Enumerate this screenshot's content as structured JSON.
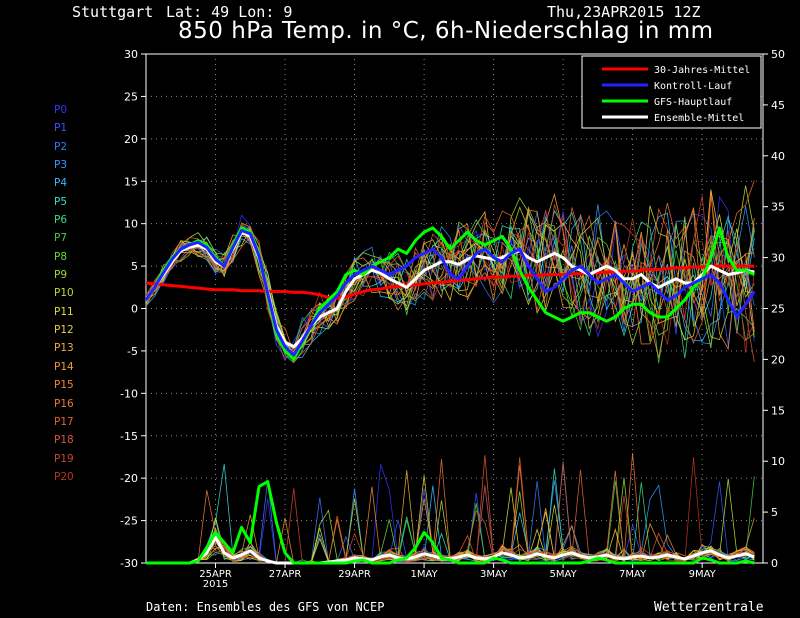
{
  "header": {
    "location": "Stuttgart",
    "coords": "Lat: 49 Lon: 9",
    "run": "Thu,23APR2015 12Z",
    "title": "850 hPa Temp. in °C, 6h-Niederschlag in mm"
  },
  "footer": {
    "source": "Daten: Ensembles des GFS von NCEP",
    "brand": "Wetterzentrale"
  },
  "members": [
    {
      "label": "P0",
      "color": "#3333ff"
    },
    {
      "label": "P1",
      "color": "#3355ff"
    },
    {
      "label": "P2",
      "color": "#3377ff"
    },
    {
      "label": "P3",
      "color": "#3399ff"
    },
    {
      "label": "P4",
      "color": "#33bbff"
    },
    {
      "label": "P5",
      "color": "#33ddcc"
    },
    {
      "label": "P6",
      "color": "#33dd88"
    },
    {
      "label": "P7",
      "color": "#44cc44"
    },
    {
      "label": "P8",
      "color": "#66dd33"
    },
    {
      "label": "P9",
      "color": "#99dd33"
    },
    {
      "label": "P10",
      "color": "#bbdd33"
    },
    {
      "label": "P11",
      "color": "#dddd33"
    },
    {
      "label": "P12",
      "color": "#eecc33"
    },
    {
      "label": "P13",
      "color": "#eeaa33"
    },
    {
      "label": "P14",
      "color": "#ee9933"
    },
    {
      "label": "P15",
      "color": "#ee8833"
    },
    {
      "label": "P16",
      "color": "#ee7733"
    },
    {
      "label": "P17",
      "color": "#dd6633"
    },
    {
      "label": "P18",
      "color": "#dd5533"
    },
    {
      "label": "P19",
      "color": "#cc4433"
    },
    {
      "label": "P20",
      "color": "#bb3322"
    }
  ],
  "chart_data": {
    "type": "line",
    "x_ticks": [
      "25APR\n2015",
      "27APR",
      "29APR",
      "1MAY",
      "3MAY",
      "5MAY",
      "7MAY",
      "9MAY"
    ],
    "x_tick_day": [
      2,
      4,
      6,
      8,
      10,
      12,
      14,
      16
    ],
    "xlim_days": [
      0,
      17.75
    ],
    "temp_axis": {
      "label": "°C",
      "ylim": [
        -30,
        30
      ],
      "ticks": [
        -30,
        -25,
        -20,
        -15,
        -10,
        -5,
        0,
        5,
        10,
        15,
        20,
        25,
        30
      ]
    },
    "precip_axis": {
      "label": "mm",
      "ylim": [
        0,
        50
      ],
      "ticks": [
        0,
        5,
        10,
        15,
        20,
        25,
        30,
        35,
        40,
        45,
        50
      ]
    },
    "legend": {
      "position": "top-right",
      "entries": [
        {
          "name": "30-Jahres-Mittel",
          "color": "#ff0000"
        },
        {
          "name": "Kontroll-Lauf",
          "color": "#2222ff"
        },
        {
          "name": "GFS-Hauptlauf",
          "color": "#00ff00"
        },
        {
          "name": "Ensemble-Mittel",
          "color": "#ffffff"
        }
      ]
    },
    "step_days": 0.25,
    "series": [
      {
        "name": "30-Jahres-Mittel",
        "axis": "temp",
        "color": "#ff0000",
        "width": 3,
        "values": [
          3.0,
          2.9,
          2.8,
          2.7,
          2.6,
          2.5,
          2.4,
          2.3,
          2.2,
          2.2,
          2.2,
          2.1,
          2.1,
          2.1,
          2.0,
          2.0,
          2.0,
          1.9,
          1.9,
          1.8,
          1.6,
          1.3,
          1.2,
          1.4,
          1.7,
          2.0,
          2.2,
          2.3,
          2.5,
          2.6,
          2.7,
          2.8,
          2.9,
          3.0,
          3.1,
          3.2,
          3.3,
          3.4,
          3.5,
          3.6,
          3.7,
          3.7,
          3.8,
          3.8,
          3.9,
          3.9,
          4.0,
          4.0,
          4.0,
          4.1,
          4.1,
          4.2,
          4.2,
          4.3,
          4.3,
          4.4,
          4.4,
          4.5,
          4.6,
          4.6,
          4.7,
          4.8,
          4.8,
          4.9,
          4.9,
          5.0,
          5.0,
          5.0,
          5.0,
          5.0,
          5.0
        ]
      },
      {
        "name": "Ensemble-Mittel",
        "axis": "temp",
        "color": "#ffffff",
        "width": 3,
        "values": [
          1.0,
          2.5,
          4.0,
          5.5,
          6.8,
          7.2,
          7.5,
          7.0,
          5.5,
          5.0,
          7.0,
          9.0,
          8.5,
          6.0,
          2.0,
          -2.0,
          -4.0,
          -4.5,
          -3.5,
          -2.0,
          -1.0,
          -0.5,
          0.0,
          2.0,
          3.5,
          4.0,
          4.5,
          4.2,
          3.5,
          3.0,
          2.5,
          3.5,
          4.5,
          5.0,
          5.5,
          5.5,
          5.2,
          5.8,
          6.2,
          6.0,
          5.8,
          6.0,
          6.5,
          6.8,
          6.0,
          5.5,
          6.0,
          6.5,
          6.0,
          5.0,
          4.5,
          4.0,
          4.5,
          5.0,
          4.5,
          3.5,
          3.5,
          4.0,
          3.0,
          2.5,
          3.0,
          3.5,
          3.0,
          3.0,
          4.0,
          5.0,
          4.5,
          4.0,
          4.2,
          4.5,
          4.3
        ]
      },
      {
        "name": "GFS-Hauptlauf",
        "axis": "temp",
        "color": "#00ff00",
        "width": 3,
        "values": [
          1.0,
          2.5,
          4.5,
          6.0,
          7.0,
          7.5,
          8.0,
          7.5,
          6.0,
          5.0,
          7.5,
          9.5,
          9.0,
          6.5,
          1.5,
          -3.0,
          -5.0,
          -6.0,
          -4.0,
          -2.0,
          0.0,
          1.0,
          2.0,
          4.0,
          4.5,
          4.0,
          5.0,
          5.5,
          6.0,
          7.0,
          6.5,
          8.0,
          9.0,
          9.5,
          8.5,
          7.0,
          8.0,
          9.0,
          8.0,
          7.5,
          8.0,
          8.5,
          7.0,
          4.5,
          2.5,
          1.0,
          -0.5,
          -1.0,
          -1.5,
          -1.0,
          -0.5,
          -0.5,
          -1.0,
          -1.5,
          -1.0,
          0.0,
          0.5,
          0.5,
          -0.5,
          -1.0,
          -1.0,
          0.0,
          1.0,
          2.5,
          3.5,
          6.0,
          9.5,
          6.0,
          4.5,
          4.5,
          4.0
        ]
      },
      {
        "name": "Kontroll-Lauf",
        "axis": "temp",
        "color": "#2222ff",
        "width": 3,
        "values": [
          1.0,
          2.5,
          4.2,
          5.8,
          7.0,
          7.5,
          7.8,
          7.2,
          5.8,
          5.0,
          7.2,
          9.2,
          8.8,
          6.2,
          1.8,
          -2.5,
          -4.5,
          -5.5,
          -3.8,
          -2.0,
          -0.5,
          0.5,
          1.5,
          3.0,
          4.0,
          4.5,
          5.0,
          4.5,
          4.0,
          4.5,
          5.0,
          6.0,
          6.5,
          7.0,
          6.0,
          4.0,
          3.5,
          5.0,
          6.5,
          7.0,
          6.0,
          5.5,
          6.5,
          7.0,
          5.0,
          3.5,
          2.0,
          2.5,
          3.5,
          4.5,
          5.0,
          4.0,
          3.0,
          3.5,
          4.0,
          3.0,
          2.0,
          2.5,
          3.0,
          2.0,
          1.0,
          1.5,
          2.5,
          3.0,
          3.5,
          4.0,
          3.0,
          1.0,
          -1.0,
          0.5,
          2.0
        ]
      },
      {
        "name": "Ensemble-Mittel Niederschlag",
        "axis": "precip",
        "color": "#ffffff",
        "width": 3,
        "values": [
          0,
          0,
          0,
          0,
          0,
          0,
          0.3,
          1.0,
          2.5,
          1.0,
          0.5,
          0.8,
          1.2,
          0.5,
          0.2,
          0,
          0,
          0,
          0,
          0,
          0,
          0.1,
          0.2,
          0.3,
          0.5,
          0.4,
          0.3,
          0.6,
          0.8,
          0.5,
          0.4,
          0.6,
          0.9,
          0.7,
          0.5,
          0.4,
          0.6,
          0.8,
          0.5,
          0.4,
          0.6,
          1.0,
          0.8,
          0.5,
          0.6,
          0.9,
          0.7,
          0.5,
          0.8,
          1.0,
          0.7,
          0.5,
          0.6,
          0.8,
          0.5,
          0.4,
          0.6,
          0.7,
          0.5,
          0.6,
          0.8,
          0.6,
          0.4,
          0.7,
          1.0,
          1.2,
          0.8,
          0.5,
          0.7,
          0.9,
          0.6
        ]
      },
      {
        "name": "GFS-Hauptlauf Niederschlag",
        "axis": "precip",
        "color": "#00ff00",
        "width": 3,
        "values": [
          0,
          0,
          0,
          0,
          0,
          0,
          0.2,
          1.5,
          3.0,
          2.0,
          1.0,
          3.5,
          2.0,
          7.5,
          8.0,
          4.0,
          1.0,
          0,
          0,
          0,
          0,
          0,
          0,
          0,
          0.2,
          0.3,
          0,
          0,
          0,
          0.3,
          0.5,
          1.5,
          3.0,
          2.0,
          0.5,
          0.3,
          0,
          0,
          0,
          0,
          0.5,
          0.3,
          0,
          0,
          0,
          0,
          0,
          0,
          0,
          0,
          0,
          0.2,
          0.5,
          0.3,
          0,
          0,
          0,
          0,
          0,
          0,
          0,
          0,
          0,
          0,
          0.5,
          0.3,
          0,
          0,
          0,
          0.2,
          0
        ]
      }
    ]
  }
}
